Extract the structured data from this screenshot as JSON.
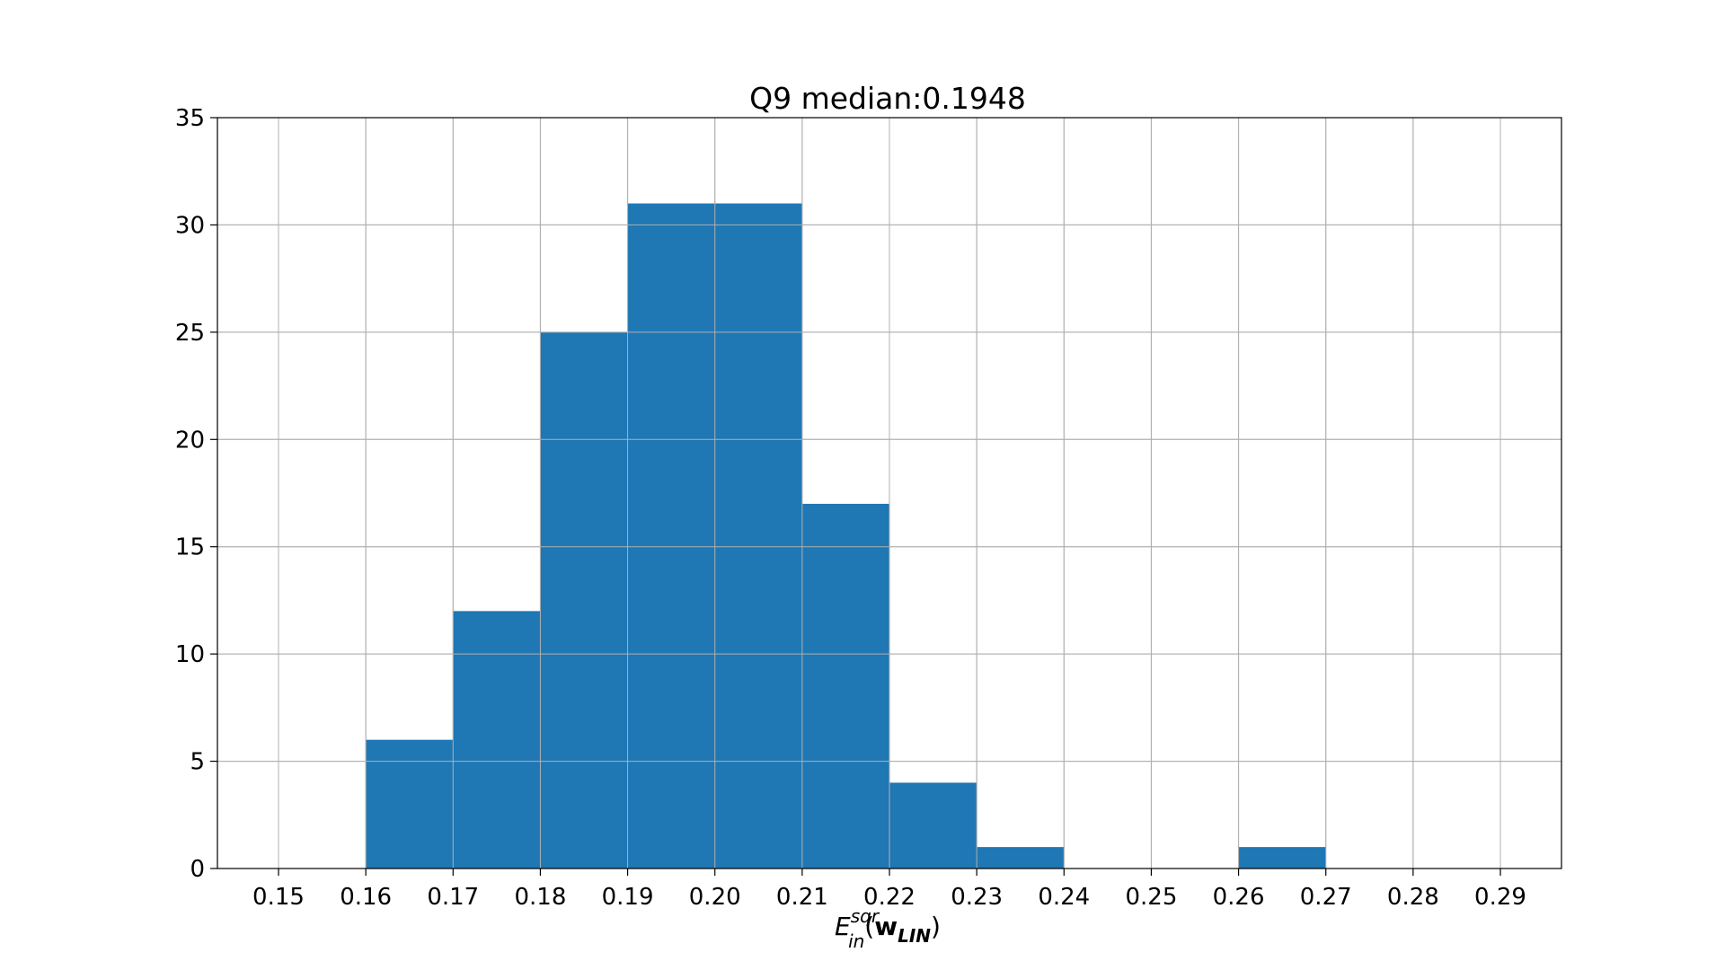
{
  "chart_data": {
    "type": "bar",
    "title": "Q9 median:0.1948",
    "xlabel": {
      "base": "E",
      "superscript": "sqr",
      "subscript": "in",
      "arg_open": "(",
      "arg_bold": "w",
      "arg_sub": "LIN",
      "arg_close": ")"
    },
    "ylabel": "",
    "histogram": true,
    "bins": [
      {
        "start": 0.16,
        "end": 0.17,
        "count": 6
      },
      {
        "start": 0.17,
        "end": 0.18,
        "count": 12
      },
      {
        "start": 0.18,
        "end": 0.19,
        "count": 25
      },
      {
        "start": 0.19,
        "end": 0.2,
        "count": 31
      },
      {
        "start": 0.2,
        "end": 0.21,
        "count": 31
      },
      {
        "start": 0.21,
        "end": 0.22,
        "count": 17
      },
      {
        "start": 0.22,
        "end": 0.23,
        "count": 4
      },
      {
        "start": 0.23,
        "end": 0.24,
        "count": 1
      },
      {
        "start": 0.24,
        "end": 0.25,
        "count": 0
      },
      {
        "start": 0.25,
        "end": 0.26,
        "count": 0
      },
      {
        "start": 0.26,
        "end": 0.27,
        "count": 1
      }
    ],
    "xlim": [
      0.143,
      0.297
    ],
    "ylim": [
      0,
      35
    ],
    "xticks": [
      "0.15",
      "0.16",
      "0.17",
      "0.18",
      "0.19",
      "0.20",
      "0.21",
      "0.22",
      "0.23",
      "0.24",
      "0.25",
      "0.26",
      "0.27",
      "0.28",
      "0.29"
    ],
    "yticks": [
      "0",
      "5",
      "10",
      "15",
      "20",
      "25",
      "30",
      "35"
    ],
    "grid": true,
    "bar_color": "#1f77b4"
  }
}
